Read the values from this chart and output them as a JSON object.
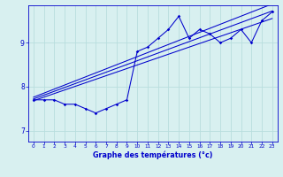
{
  "xlabel": "Graphe des températures (°c)",
  "bg_color": "#d8f0f0",
  "line_color": "#0000cc",
  "grid_color": "#b8dede",
  "xlim": [
    -0.5,
    23.5
  ],
  "ylim": [
    6.75,
    9.85
  ],
  "yticks": [
    7,
    8,
    9
  ],
  "xticks": [
    0,
    1,
    2,
    3,
    4,
    5,
    6,
    7,
    8,
    9,
    10,
    11,
    12,
    13,
    14,
    15,
    16,
    17,
    18,
    19,
    20,
    21,
    22,
    23
  ],
  "temp_data": [
    7.7,
    7.7,
    7.7,
    7.6,
    7.6,
    7.5,
    7.4,
    7.5,
    7.6,
    7.7,
    8.8,
    8.9,
    9.1,
    9.3,
    9.6,
    9.1,
    9.3,
    9.2,
    9.0,
    9.1,
    9.3,
    9.0,
    9.5,
    9.7
  ],
  "reg_lines": [
    [
      [
        0,
        7.72
      ],
      [
        23,
        9.72
      ]
    ],
    [
      [
        0,
        7.68
      ],
      [
        23,
        9.55
      ]
    ],
    [
      [
        0,
        7.76
      ],
      [
        23,
        9.88
      ]
    ]
  ],
  "figsize": [
    3.2,
    2.0
  ],
  "dpi": 100
}
